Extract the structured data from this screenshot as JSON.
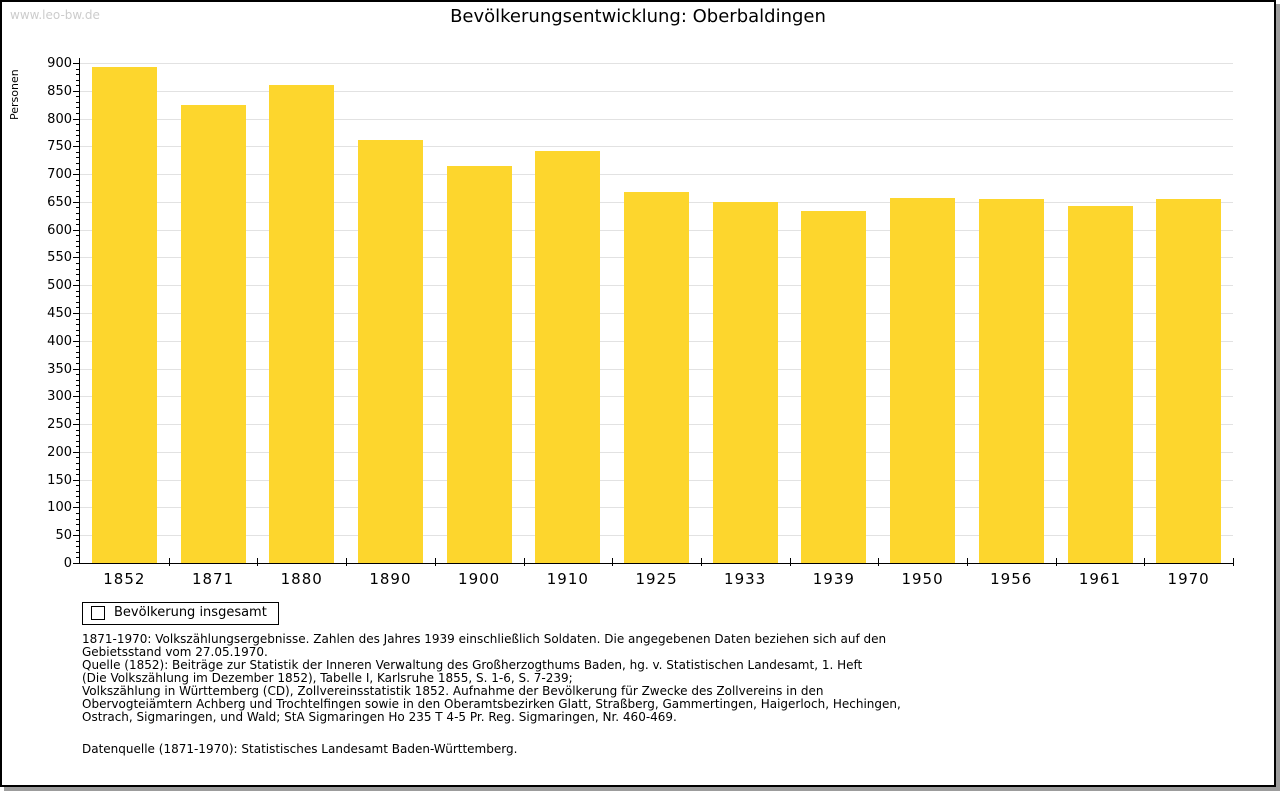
{
  "watermark": "www.leo-bw.de",
  "header": {
    "title": "Bevölkerungsentwicklung: Oberbaldingen"
  },
  "chart_data": {
    "type": "bar",
    "title": "Bevölkerungsentwicklung: Oberbaldingen",
    "xlabel": "",
    "ylabel": "Personen",
    "categories": [
      "1852",
      "1871",
      "1880",
      "1890",
      "1900",
      "1910",
      "1925",
      "1933",
      "1939",
      "1950",
      "1956",
      "1961",
      "1970"
    ],
    "values": [
      893,
      824,
      860,
      761,
      714,
      742,
      667,
      650,
      633,
      657,
      655,
      643,
      655
    ],
    "ylim": [
      0,
      900
    ],
    "y_major_step": 50,
    "y_minor_step": 10,
    "grid": true,
    "legend_position": "bottom-left",
    "bar_color": "#fdd62d",
    "legend": {
      "label": "Bevölkerung insgesamt"
    }
  },
  "footnotes": {
    "lines": [
      "1871-1970: Volkszählungsergebnisse. Zahlen des Jahres 1939 einschließlich Soldaten. Die angegebenen Daten beziehen sich auf den",
      "Gebietsstand vom 27.05.1970.",
      "Quelle (1852): Beiträge zur Statistik der Inneren Verwaltung des Großherzogthums Baden, hg. v. Statistischen Landesamt, 1. Heft",
      "(Die Volkszählung im Dezember 1852), Tabelle I, Karlsruhe 1855, S. 1-6, S. 7-239;",
      "Volkszählung in Württemberg (CD), Zollvereinsstatistik 1852. Aufnahme der Bevölkerung für Zwecke des Zollvereins in den",
      "Obervogteiämtern Achberg und Trochtelfingen sowie in den Oberamtsbezirken Glatt, Straßberg, Gammertingen, Haigerloch, Hechingen,",
      "Ostrach, Sigmaringen, und Wald; StA Sigmaringen Ho 235 T 4-5 Pr. Reg. Sigmaringen, Nr. 460-469."
    ],
    "datasource": "Datenquelle (1871-1970): Statistisches Landesamt Baden-Württemberg."
  },
  "colors": {
    "bar": "#fdd62d",
    "gridline": "#e2e2e2",
    "axis": "#000000",
    "watermark": "#cccccc",
    "frame_shadow": "#9c9c9c"
  }
}
